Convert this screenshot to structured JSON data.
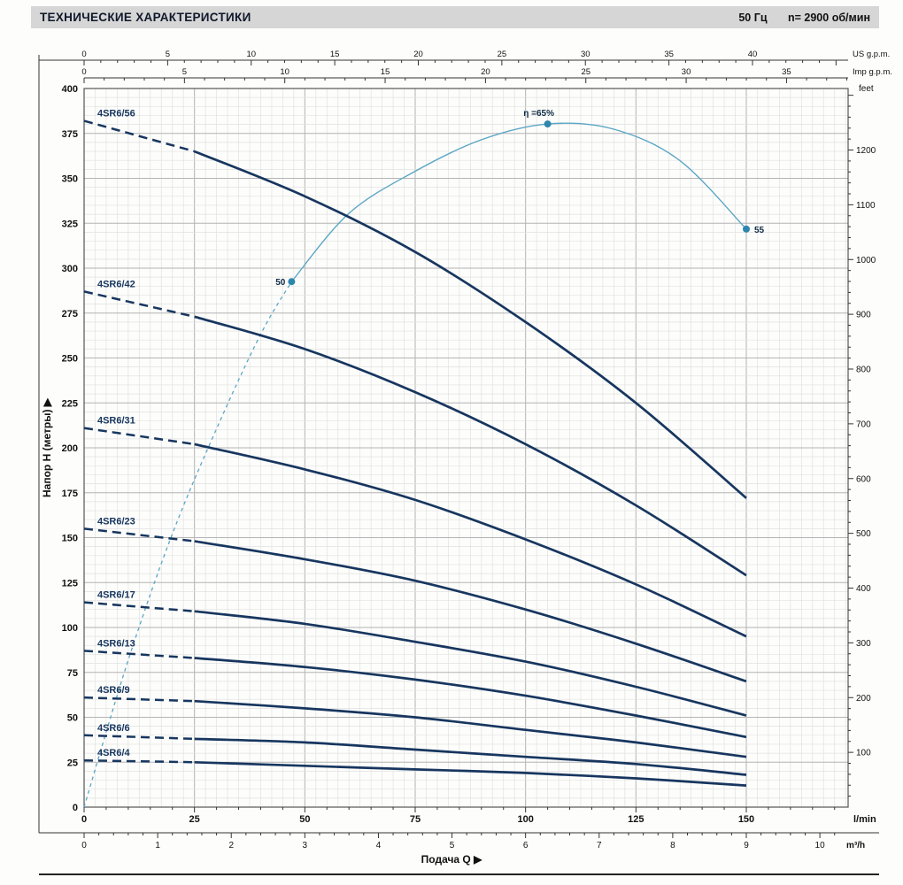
{
  "header": {
    "title": "ТЕХНИЧЕСКИЕ ХАРАКТЕРИСТИКИ",
    "frequency": "50 Гц",
    "speed": "n= 2900 об/мин"
  },
  "chart_data": {
    "type": "line",
    "title": "ТЕХНИЧЕСКИЕ ХАРАКТЕРИСТИКИ",
    "subtitle": "50 Гц  n= 2900 об/мин",
    "xlabel": "Подача Q ▶",
    "ylabel": "Напор H (метры) ▶",
    "grid": true,
    "legend_position": "inline-curve-labels",
    "axes": {
      "x_lmin": {
        "label": "l/min",
        "min": 0,
        "max": 173,
        "tick_labels": [
          0,
          25,
          50,
          75,
          100,
          125,
          150
        ],
        "minor_step": 5
      },
      "x_m3h": {
        "label": "m³/h",
        "tick_labels": [
          0,
          1,
          2,
          3,
          4,
          5,
          6,
          7,
          8,
          9,
          10
        ],
        "lmin_per_unit": 16.6667,
        "minor_step": 0.2
      },
      "x_usgpm": {
        "label": "US g.p.m.",
        "labeled_max": 40,
        "label_step": 5,
        "lmin_per_unit": 3.785
      },
      "x_impgpm": {
        "label": "Imp g.p.m.",
        "labeled_max": 35,
        "label_step": 5,
        "lmin_per_unit": 4.546
      },
      "y_m": {
        "min": 0,
        "max": 400,
        "major_step": 25,
        "minor_step": 5
      },
      "y_feet": {
        "label": "feet",
        "labeled_min": 100,
        "labeled_max": 1200,
        "label_step": 100,
        "minor_step": 20,
        "m_per_unit": 0.3048
      }
    },
    "q_lmin": [
      0,
      25,
      50,
      75,
      100,
      125,
      150
    ],
    "dashed_until_lmin": 25,
    "series": [
      {
        "name": "4SR6/56",
        "h_m": [
          382,
          365,
          340,
          309,
          270,
          225,
          172
        ]
      },
      {
        "name": "4SR6/42",
        "h_m": [
          287,
          273,
          255,
          231,
          202,
          168,
          129
        ]
      },
      {
        "name": "4SR6/31",
        "h_m": [
          211,
          202,
          188,
          171,
          149,
          124,
          95
        ]
      },
      {
        "name": "4SR6/23",
        "h_m": [
          155,
          148,
          138,
          126,
          110,
          91,
          70
        ]
      },
      {
        "name": "4SR6/17",
        "h_m": [
          114,
          109,
          102,
          92,
          81,
          67,
          51
        ]
      },
      {
        "name": "4SR6/13",
        "h_m": [
          87,
          83,
          78,
          71,
          62,
          51,
          39
        ]
      },
      {
        "name": "4SR6/9",
        "h_m": [
          61,
          59,
          55,
          50,
          43,
          36,
          28
        ]
      },
      {
        "name": "4SR6/6",
        "h_m": [
          40,
          38,
          36,
          32,
          28,
          24,
          18
        ]
      },
      {
        "name": "4SR6/4",
        "h_m": [
          26,
          25,
          23,
          21,
          19,
          16,
          12
        ]
      }
    ],
    "efficiency_curve": {
      "unit": "%",
      "plotted_scale_m_per_percent": 5.85,
      "dashed_points_q_eff": [
        [
          0,
          0
        ],
        [
          10,
          14
        ],
        [
          20,
          26
        ],
        [
          30,
          36
        ],
        [
          40,
          45
        ],
        [
          47,
          50
        ]
      ],
      "solid_points_q_eff": [
        [
          47,
          50
        ],
        [
          60,
          56.5
        ],
        [
          75,
          60.5
        ],
        [
          90,
          63.5
        ],
        [
          105,
          65
        ],
        [
          120,
          64.5
        ],
        [
          135,
          61.5
        ],
        [
          150,
          55
        ]
      ],
      "markers": [
        {
          "q_lmin": 47,
          "eff": 50,
          "label": "50",
          "side": "left"
        },
        {
          "q_lmin": 105,
          "eff": 65,
          "label": "η =65%",
          "side": "top"
        },
        {
          "q_lmin": 150,
          "eff": 55,
          "label": "55",
          "side": "right"
        }
      ]
    },
    "colors": {
      "pump_curve": "#17365f",
      "efficiency_curve": "#5aa6c6",
      "efficiency_marker": "#2e86ad",
      "grid_minor": "#e1e1e1",
      "grid_major": "#b4b4b4",
      "axis": "#333333",
      "frame": "#555555",
      "text": "#111111"
    }
  }
}
